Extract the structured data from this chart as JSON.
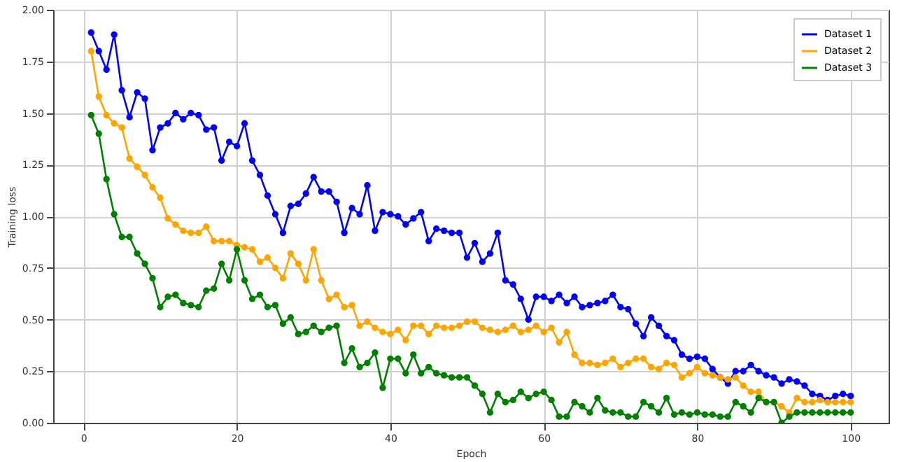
{
  "chart_data": {
    "type": "line",
    "xlabel": "Epoch",
    "ylabel": "Training loss",
    "x": [
      1,
      2,
      3,
      4,
      5,
      6,
      7,
      8,
      9,
      10,
      11,
      12,
      13,
      14,
      15,
      16,
      17,
      18,
      19,
      20,
      21,
      22,
      23,
      24,
      25,
      26,
      27,
      28,
      29,
      30,
      31,
      32,
      33,
      34,
      35,
      36,
      37,
      38,
      39,
      40,
      41,
      42,
      43,
      44,
      45,
      46,
      47,
      48,
      49,
      50,
      51,
      52,
      53,
      54,
      55,
      56,
      57,
      58,
      59,
      60,
      61,
      62,
      63,
      64,
      65,
      66,
      67,
      68,
      69,
      70,
      71,
      72,
      73,
      74,
      75,
      76,
      77,
      78,
      79,
      80,
      81,
      82,
      83,
      84,
      85,
      86,
      87,
      88,
      89,
      90,
      91,
      92,
      93,
      94,
      95,
      96,
      97,
      98,
      99,
      100
    ],
    "series": [
      {
        "name": "Dataset 1",
        "color": "#0000ff",
        "values": [
          1.89,
          1.8,
          1.71,
          1.88,
          1.61,
          1.48,
          1.6,
          1.57,
          1.32,
          1.43,
          1.45,
          1.5,
          1.47,
          1.5,
          1.49,
          1.42,
          1.43,
          1.27,
          1.36,
          1.34,
          1.45,
          1.27,
          1.2,
          1.1,
          1.01,
          0.92,
          1.05,
          1.06,
          1.11,
          1.19,
          1.12,
          1.12,
          1.07,
          0.92,
          1.04,
          1.01,
          1.15,
          0.93,
          1.02,
          1.01,
          1.0,
          0.96,
          0.99,
          1.02,
          0.88,
          0.94,
          0.93,
          0.92,
          0.92,
          0.8,
          0.87,
          0.78,
          0.82,
          0.92,
          0.69,
          0.67,
          0.6,
          0.5,
          0.61,
          0.61,
          0.59,
          0.62,
          0.58,
          0.61,
          0.56,
          0.57,
          0.58,
          0.59,
          0.62,
          0.56,
          0.55,
          0.48,
          0.42,
          0.51,
          0.47,
          0.42,
          0.4,
          0.33,
          0.31,
          0.32,
          0.31,
          0.26,
          0.22,
          0.19,
          0.25,
          0.25,
          0.28,
          0.25,
          0.23,
          0.22,
          0.19,
          0.21,
          0.2,
          0.18,
          0.14,
          0.13,
          0.11,
          0.13,
          0.14,
          0.13
        ]
      },
      {
        "name": "Dataset 2",
        "color": "#ffa500",
        "values": [
          1.8,
          1.58,
          1.49,
          1.45,
          1.43,
          1.28,
          1.24,
          1.2,
          1.14,
          1.09,
          0.99,
          0.96,
          0.93,
          0.92,
          0.92,
          0.95,
          0.88,
          0.88,
          0.88,
          0.86,
          0.85,
          0.84,
          0.78,
          0.8,
          0.75,
          0.7,
          0.82,
          0.77,
          0.69,
          0.84,
          0.69,
          0.6,
          0.62,
          0.56,
          0.57,
          0.47,
          0.49,
          0.46,
          0.44,
          0.43,
          0.45,
          0.4,
          0.47,
          0.47,
          0.43,
          0.47,
          0.46,
          0.46,
          0.47,
          0.49,
          0.49,
          0.46,
          0.45,
          0.44,
          0.45,
          0.47,
          0.44,
          0.45,
          0.47,
          0.44,
          0.46,
          0.39,
          0.44,
          0.33,
          0.29,
          0.29,
          0.28,
          0.29,
          0.31,
          0.27,
          0.29,
          0.31,
          0.31,
          0.27,
          0.26,
          0.29,
          0.28,
          0.22,
          0.24,
          0.27,
          0.24,
          0.23,
          0.22,
          0.21,
          0.22,
          0.18,
          0.15,
          0.15,
          0.1,
          0.1,
          0.08,
          0.05,
          0.12,
          0.1,
          0.1,
          0.11,
          0.1,
          0.1,
          0.1,
          0.1
        ]
      },
      {
        "name": "Dataset 3",
        "color": "#008000",
        "values": [
          1.49,
          1.4,
          1.18,
          1.01,
          0.9,
          0.9,
          0.82,
          0.77,
          0.7,
          0.56,
          0.61,
          0.62,
          0.58,
          0.57,
          0.56,
          0.64,
          0.65,
          0.77,
          0.69,
          0.84,
          0.69,
          0.6,
          0.62,
          0.56,
          0.57,
          0.48,
          0.51,
          0.43,
          0.44,
          0.47,
          0.44,
          0.46,
          0.47,
          0.29,
          0.36,
          0.27,
          0.29,
          0.34,
          0.17,
          0.31,
          0.31,
          0.24,
          0.33,
          0.24,
          0.27,
          0.24,
          0.23,
          0.22,
          0.22,
          0.22,
          0.18,
          0.14,
          0.05,
          0.14,
          0.1,
          0.11,
          0.15,
          0.12,
          0.14,
          0.15,
          0.11,
          0.03,
          0.03,
          0.1,
          0.08,
          0.05,
          0.12,
          0.06,
          0.05,
          0.05,
          0.03,
          0.03,
          0.1,
          0.08,
          0.05,
          0.12,
          0.04,
          0.05,
          0.04,
          0.05,
          0.04,
          0.04,
          0.03,
          0.03,
          0.1,
          0.08,
          0.05,
          0.12,
          0.1,
          0.1,
          0.0,
          0.03,
          0.05,
          0.05,
          0.05,
          0.05,
          0.05,
          0.05,
          0.05,
          0.05
        ]
      }
    ],
    "xlim": [
      -3.95,
      104.95
    ],
    "xticks": [
      0,
      20,
      40,
      60,
      80,
      100
    ],
    "ylim": [
      0,
      2
    ],
    "yticks": [
      {
        "value": 0,
        "label": "0.00"
      },
      {
        "value": 0.25,
        "label": "0.25"
      },
      {
        "value": 0.5,
        "label": "0.50"
      },
      {
        "value": 0.75,
        "label": "0.75"
      },
      {
        "value": 1,
        "label": "1.00"
      },
      {
        "value": 1.25,
        "label": "1.25"
      },
      {
        "value": 1.5,
        "label": "1.50"
      },
      {
        "value": 1.75,
        "label": "1.75"
      },
      {
        "value": 2,
        "label": "2.00"
      }
    ],
    "grid": true,
    "legend": "top right",
    "marker": "circle",
    "line_style": "solid"
  }
}
